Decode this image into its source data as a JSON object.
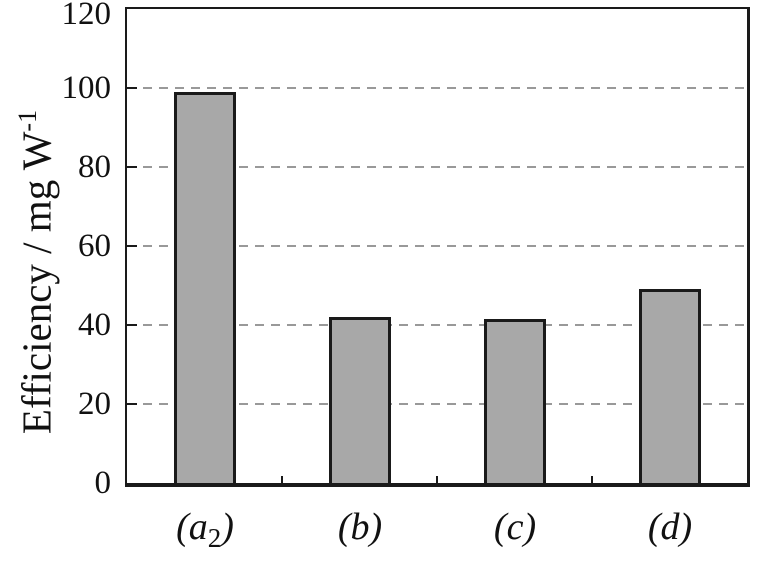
{
  "chart_data": {
    "type": "bar",
    "title": "",
    "ylabel": {
      "text": "Efficiency / mg W",
      "superscript": "-1"
    },
    "xlabel": "",
    "ylim": [
      0,
      120
    ],
    "yticks": [
      0,
      20,
      40,
      60,
      80,
      100,
      120
    ],
    "gridlines": [
      20,
      40,
      60,
      80,
      100
    ],
    "grid_style": "horizontal-dashed",
    "legend_position": "none",
    "categories": [
      {
        "open": "(",
        "base": "a",
        "sub": "2",
        "close": ")"
      },
      {
        "open": "(",
        "base": "b",
        "sub": "",
        "close": ")"
      },
      {
        "open": "(",
        "base": "c",
        "sub": "",
        "close": ")"
      },
      {
        "open": "(",
        "base": "d",
        "sub": "",
        "close": ")"
      }
    ],
    "values": [
      99,
      42,
      41.5,
      49
    ],
    "colors": {
      "bar_fill": "#a8a8a8",
      "bar_border": "#1a1a1a",
      "axis": "#1a1a1a",
      "gridline": "#999999",
      "text": "#111111"
    }
  }
}
